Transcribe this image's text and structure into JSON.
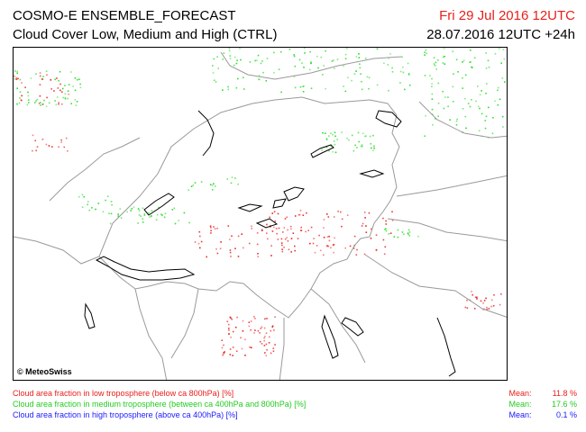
{
  "header": {
    "title": "COSMO-E ENSEMBLE_FORECAST",
    "subtitle": "Cloud Cover Low, Medium and High (CTRL)",
    "valid_time": "Fri 29 Jul 2016 12UTC",
    "run_time": "28.07.2016 12UTC +24h"
  },
  "map": {
    "copyright": "© MeteoSwiss",
    "colors": {
      "low": "#e8201c",
      "medium": "#22dd22",
      "high": "#1a1aff",
      "border": "#9a9a9a",
      "coast": "#000000"
    }
  },
  "legend": [
    {
      "label": "Cloud area fraction in low troposphere (below ca 800hPa) [%]",
      "mean_label": "Mean:",
      "mean_value": "11.8 %",
      "color": "#e8201c"
    },
    {
      "label": "Cloud area fraction in medium troposphere (between ca 400hPa and 800hPa) [%]",
      "mean_label": "Mean:",
      "mean_value": "17.6 %",
      "color": "#22dd22"
    },
    {
      "label": "Cloud area fraction in high troposphere (above ca 400hPa) [%]",
      "mean_label": "Mean:",
      "mean_value": "0.1 %",
      "color": "#1a1aff"
    }
  ]
}
